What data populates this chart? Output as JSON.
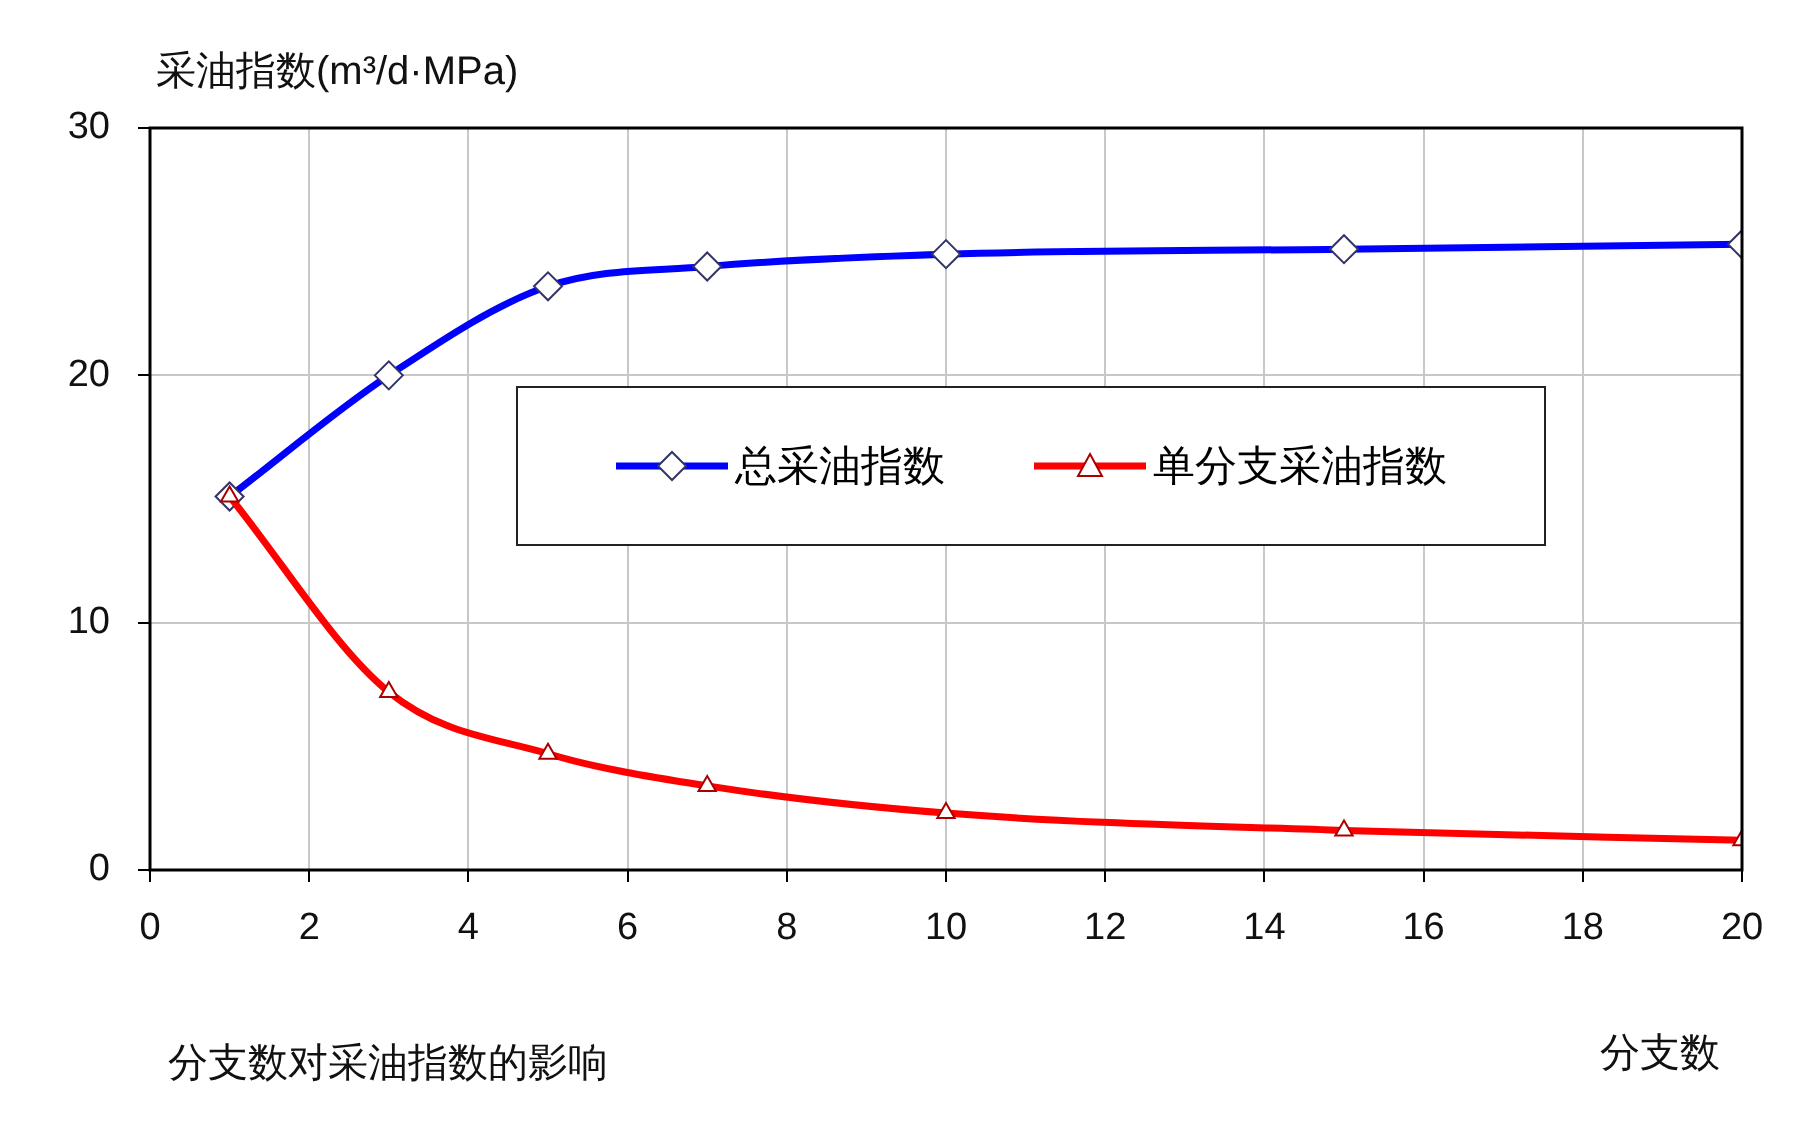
{
  "chart_data": {
    "type": "line",
    "ylabel": "采油指数(m³/d·MPa)",
    "xlabel": "分支数",
    "annotations": [
      "分支数对采油指数的影响"
    ],
    "x": [
      1,
      3,
      5,
      7,
      10,
      15,
      20
    ],
    "series": [
      {
        "name": "总采油指数",
        "color": "#0000ff",
        "marker": "diamond",
        "values": [
          15.1,
          20.0,
          23.6,
          24.4,
          24.9,
          25.1,
          25.3
        ]
      },
      {
        "name": "单分支采油指数",
        "color": "#ff0000",
        "marker": "triangle",
        "values": [
          15.1,
          7.2,
          4.7,
          3.4,
          2.3,
          1.6,
          1.2
        ]
      }
    ],
    "xlim": [
      0,
      20
    ],
    "xticks": [
      0,
      2,
      4,
      6,
      8,
      10,
      12,
      14,
      16,
      18,
      20
    ],
    "ylim": [
      0,
      30
    ],
    "yticks": [
      0,
      10,
      20,
      30
    ],
    "grid": true,
    "legend": "top",
    "line_style": "solid"
  }
}
